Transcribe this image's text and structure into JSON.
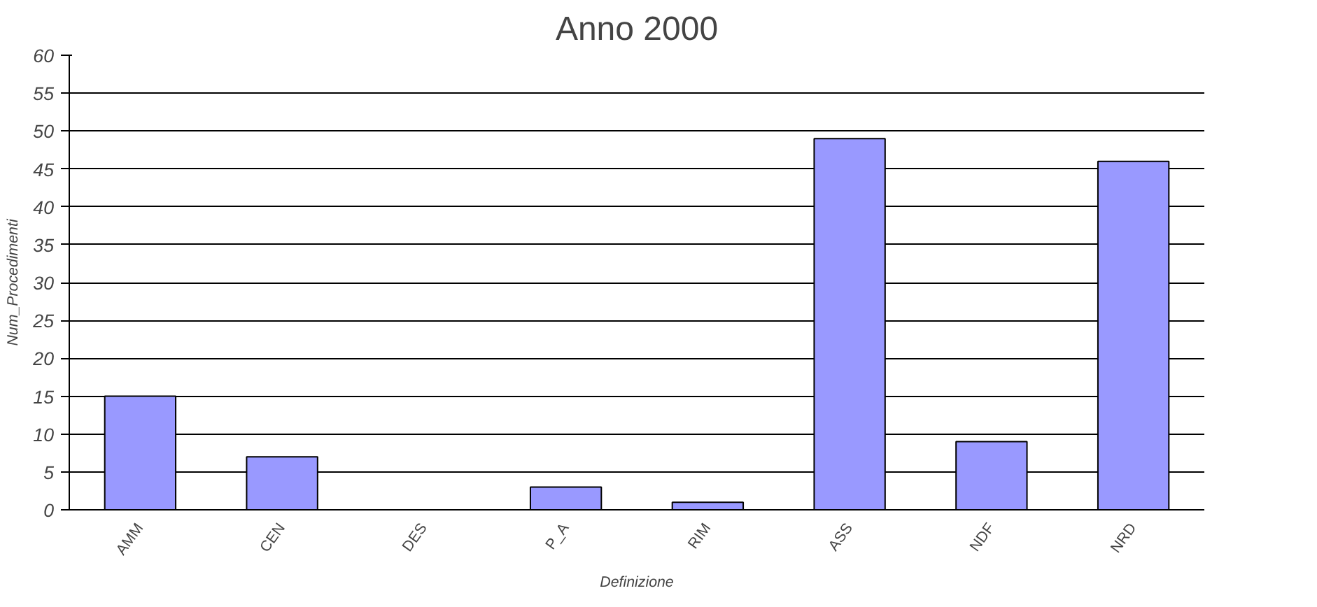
{
  "chart_data": {
    "type": "bar",
    "title": "Anno 2000",
    "xlabel": "Definizione",
    "ylabel": "Num_Procedimenti",
    "categories": [
      "AMM",
      "CEN",
      "DES",
      "P_A",
      "RIM",
      "ASS",
      "NDF",
      "NRD"
    ],
    "values": [
      15,
      7,
      0,
      3,
      1,
      49,
      9,
      46
    ],
    "color": "#9999ff",
    "ylim": [
      0,
      60
    ],
    "yticks": [
      0,
      5,
      10,
      15,
      20,
      25,
      30,
      35,
      40,
      45,
      50,
      55,
      60
    ],
    "grid": "y"
  }
}
